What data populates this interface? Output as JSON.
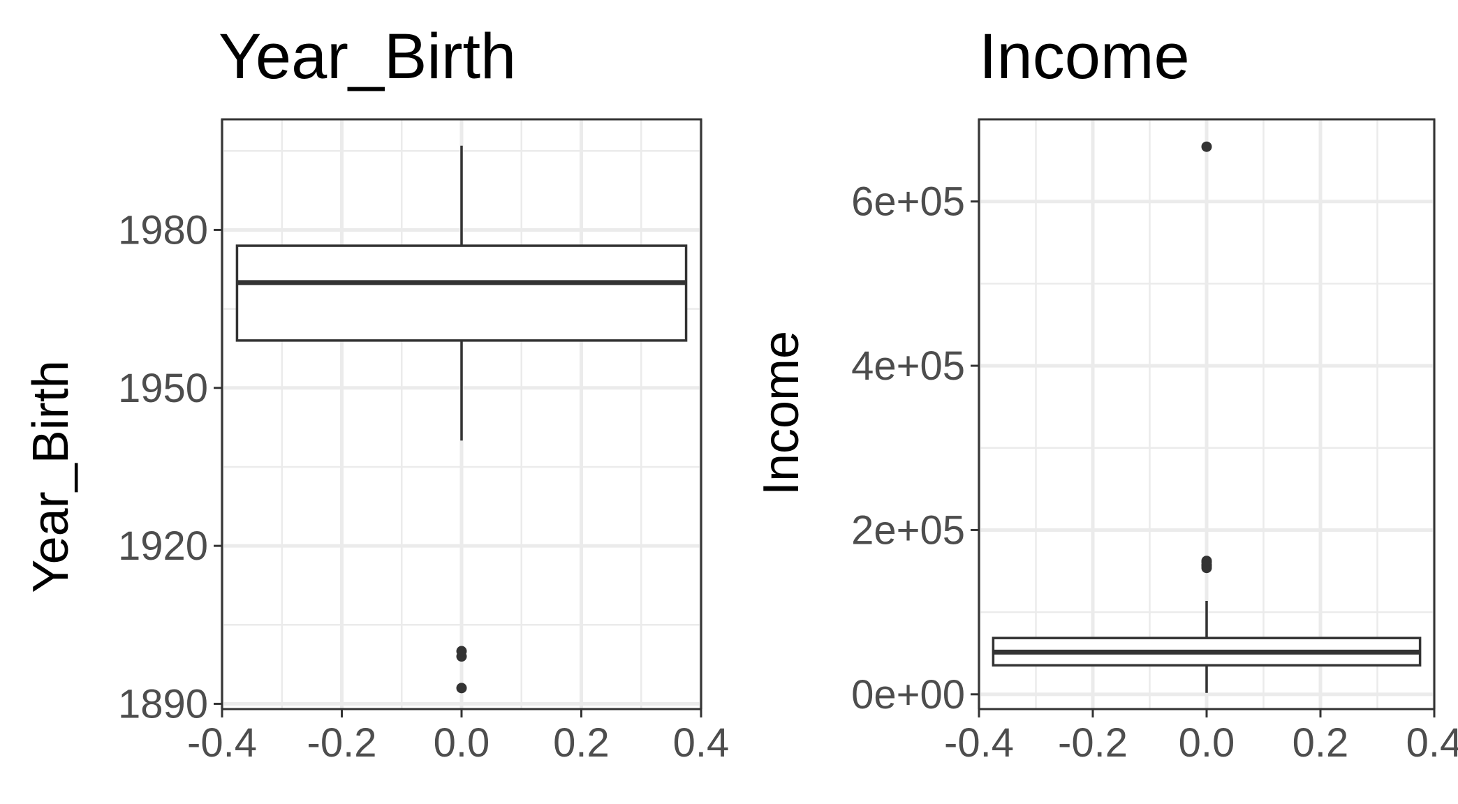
{
  "chart_data": [
    {
      "type": "box",
      "title": "Year_Birth",
      "ylabel": "Year_Birth",
      "xlabel": "",
      "xlim": [
        -0.4,
        0.4
      ],
      "ylim": [
        1889,
        2001
      ],
      "x_ticks": [
        -0.4,
        -0.2,
        0.0,
        0.2,
        0.4
      ],
      "x_tick_labels": [
        "-0.4",
        "-0.2",
        "0.0",
        "0.2",
        "0.4"
      ],
      "y_ticks": [
        1890,
        1920,
        1950,
        1980
      ],
      "y_tick_labels": [
        "1890",
        "1920",
        "1950",
        "1980"
      ],
      "grid": true,
      "box": {
        "x": 0.0,
        "half_width": 0.375,
        "lower_whisker": 1940,
        "q1": 1959,
        "median": 1970,
        "q3": 1977,
        "upper_whisker": 1996
      },
      "outliers": [
        1893,
        1899,
        1900
      ]
    },
    {
      "type": "box",
      "title": "Income",
      "ylabel": "Income",
      "xlabel": "",
      "xlim": [
        -0.4,
        0.4
      ],
      "ylim": [
        -18000,
        700000
      ],
      "x_ticks": [
        -0.4,
        -0.2,
        0.0,
        0.2,
        0.4
      ],
      "x_tick_labels": [
        "-0.4",
        "-0.2",
        "0.0",
        "0.2",
        "0.4"
      ],
      "y_ticks": [
        0,
        200000,
        400000,
        600000
      ],
      "y_tick_labels": [
        "0e+00",
        "2e+05",
        "4e+05",
        "6e+05"
      ],
      "grid": true,
      "box": {
        "x": 0.0,
        "half_width": 0.375,
        "lower_whisker": 1730,
        "q1": 35300,
        "median": 51400,
        "q3": 68500,
        "upper_whisker": 113700
      },
      "outliers": [
        153900,
        156900,
        157100,
        157200,
        160800,
        162400,
        666700
      ]
    }
  ]
}
